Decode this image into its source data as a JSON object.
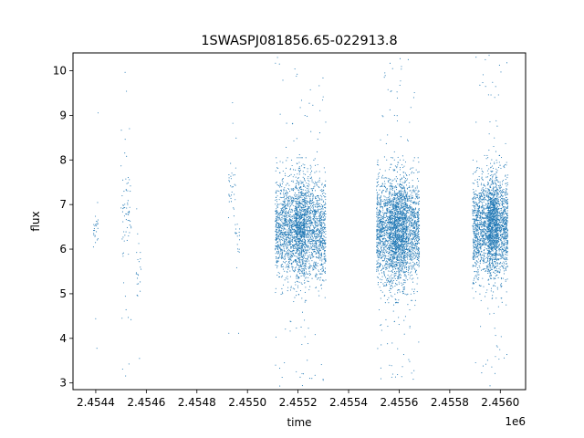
{
  "chart_data": {
    "type": "scatter",
    "title": "1SWASPJ081856.65-022913.8",
    "xlabel": "time",
    "ylabel": "flux",
    "x_offset_label": "1e6",
    "xlim": [
      2.45431,
      2.4561
    ],
    "ylim": [
      2.85,
      10.4
    ],
    "x_ticks": [
      2.4544,
      2.4546,
      2.4548,
      2.455,
      2.4552,
      2.4554,
      2.4556,
      2.4558,
      2.456
    ],
    "x_tick_labels": [
      "2.4544",
      "2.4546",
      "2.4548",
      "2.4550",
      "2.4552",
      "2.4554",
      "2.4556",
      "2.4558",
      "2.4560"
    ],
    "y_ticks": [
      3,
      4,
      5,
      6,
      7,
      8,
      9,
      10
    ],
    "y_tick_labels": [
      "3",
      "4",
      "5",
      "6",
      "7",
      "8",
      "9",
      "10"
    ],
    "grid": false,
    "marker_color": "#1f77b4",
    "series": [
      {
        "clusters": [
          {
            "center": 2.4544,
            "width": 1e-05,
            "count": 25,
            "mean": 6.45,
            "sd": 0.2,
            "outliers": 3
          },
          {
            "center": 2.45452,
            "width": 2e-05,
            "count": 60,
            "mean": 6.8,
            "sd": 0.55,
            "outliers": 14
          },
          {
            "center": 2.45457,
            "width": 1e-05,
            "count": 20,
            "mean": 5.6,
            "sd": 0.35,
            "outliers": 3
          },
          {
            "center": 2.45494,
            "width": 1.5e-05,
            "count": 30,
            "mean": 7.2,
            "sd": 0.4,
            "outliers": 4
          },
          {
            "center": 2.45496,
            "width": 1e-05,
            "count": 18,
            "mean": 6.3,
            "sd": 0.4,
            "outliers": 2
          },
          {
            "center": 2.45517,
            "width": 6e-05,
            "count": 1400,
            "mean": 6.45,
            "sd": 0.55,
            "outliers": 40
          },
          {
            "center": 2.45525,
            "width": 6e-05,
            "count": 1400,
            "mean": 6.45,
            "sd": 0.55,
            "outliers": 40
          },
          {
            "center": 2.45557,
            "width": 6e-05,
            "count": 1500,
            "mean": 6.4,
            "sd": 0.6,
            "outliers": 55
          },
          {
            "center": 2.45562,
            "width": 6e-05,
            "count": 1500,
            "mean": 6.45,
            "sd": 0.55,
            "outliers": 45
          },
          {
            "center": 2.45594,
            "width": 5e-05,
            "count": 1300,
            "mean": 6.5,
            "sd": 0.55,
            "outliers": 30
          },
          {
            "center": 2.45599,
            "width": 4e-05,
            "count": 1300,
            "mean": 6.5,
            "sd": 0.55,
            "outliers": 30
          }
        ]
      }
    ]
  }
}
